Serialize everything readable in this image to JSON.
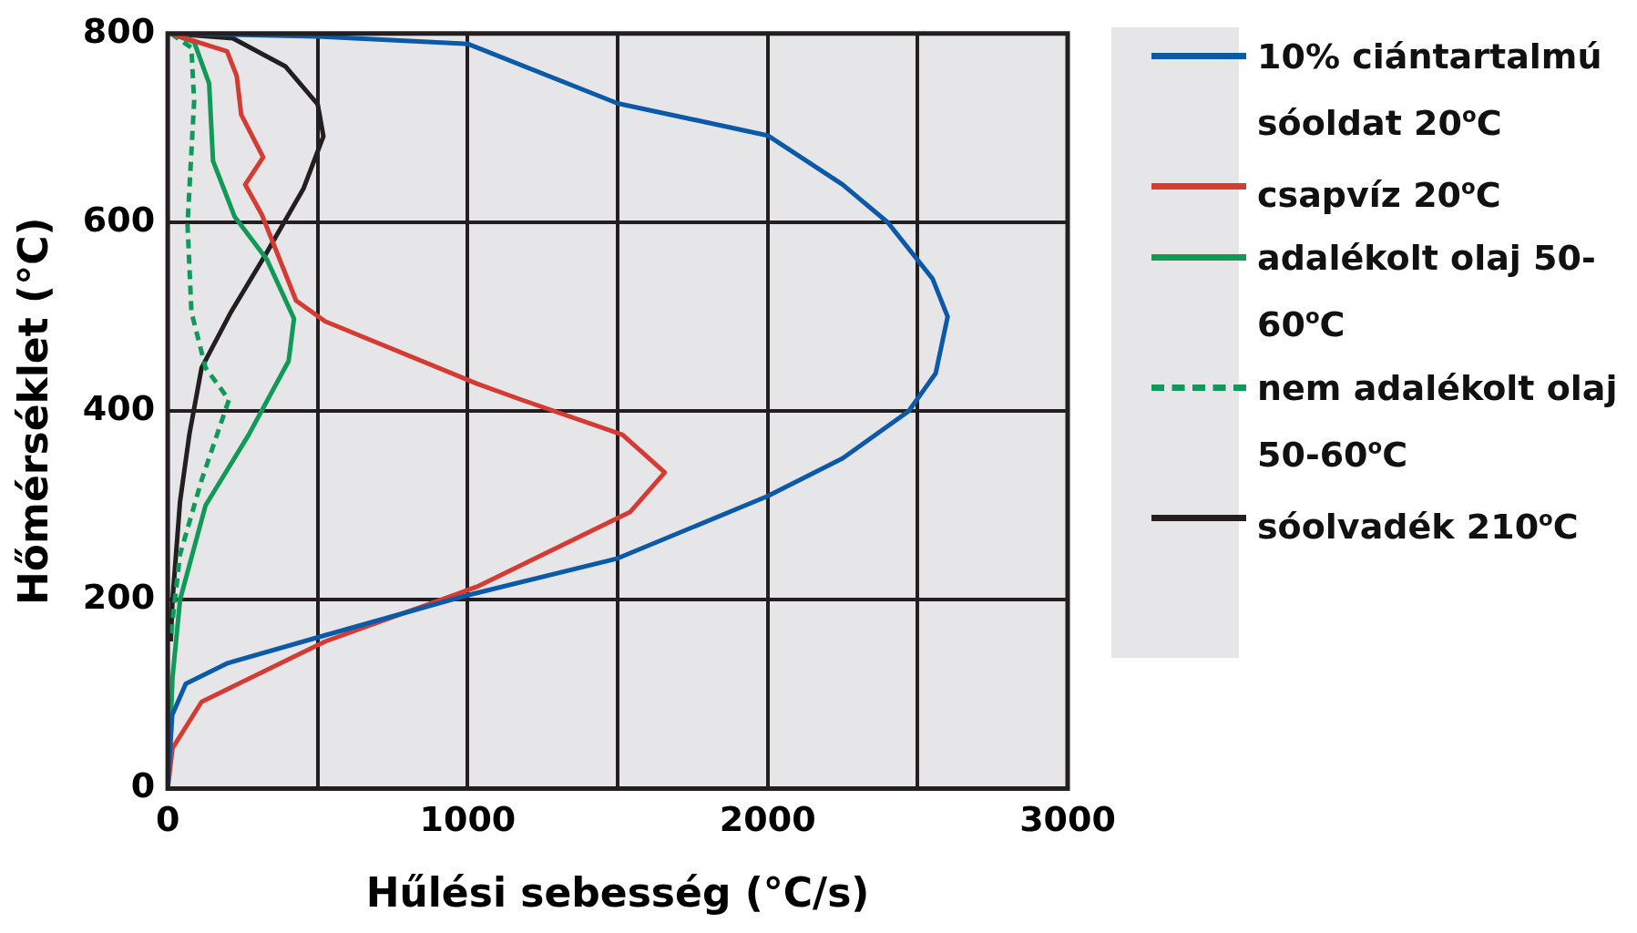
{
  "chart_data": {
    "type": "line",
    "xlabel": "Hűlési sebesség (°C/s)",
    "ylabel": "Hőmérséklet (°C)",
    "xlim": [
      0,
      3000
    ],
    "xticks": [
      0,
      {
        "value": 500,
        "label": null
      },
      1000,
      {
        "value": 1500,
        "label": null
      },
      2000,
      {
        "value": 2500,
        "label": null
      },
      3000
    ],
    "ylim": [
      0,
      800
    ],
    "yticks": [
      0,
      200,
      400,
      600,
      800
    ],
    "grid": true,
    "legend": "right",
    "marker": "none",
    "series": [
      {
        "name": "10% ciántartalmú sóoldat 20$^{o}$C",
        "color": "#0b5aa8",
        "x": [
          20,
          500,
          1000,
          1500,
          2000,
          2250,
          2400,
          2550,
          2600,
          2560,
          2470,
          2250,
          2000,
          1500,
          1000,
          530,
          200,
          60,
          15,
          0
        ],
        "values": [
          800,
          797,
          789,
          726,
          692,
          640,
          600,
          540,
          500,
          440,
          400,
          350,
          310,
          244,
          205,
          163,
          133,
          111,
          78,
          0
        ]
      },
      {
        "name": "csapvíz 20$^{o}$C",
        "color": "#d43c33",
        "x": [
          10,
          198,
          230,
          245,
          318,
          258,
          314,
          428,
          525,
          1031,
          1179,
          1516,
          1657,
          1541,
          1031,
          525,
          113,
          16,
          0
        ],
        "values": [
          800,
          781,
          755,
          714,
          669,
          640,
          608,
          517,
          495,
          429,
          412,
          375,
          335,
          293,
          214,
          156,
          92,
          43,
          0
        ]
      },
      {
        "name": "adalékolt olaj 50-60$^{o}$C",
        "color": "#119a57",
        "x": [
          10,
          88,
          138,
          151,
          223,
          330,
          421,
          403,
          270,
          126,
          41,
          16,
          0
        ],
        "values": [
          800,
          791,
          747,
          665,
          606,
          561,
          498,
          453,
          375,
          300,
          200,
          118,
          0
        ]
      },
      {
        "name": "nem adalékolt olaj 50-60$^{o}$C",
        "color": "#119a57",
        "line_style": "dashed",
        "x": [
          10,
          79,
          88,
          66,
          79,
          126,
          204,
          113,
          41,
          16,
          10
        ],
        "values": [
          800,
          785,
          728,
          598,
          505,
          446,
          412,
          327,
          248,
          178,
          160
        ]
      },
      {
        "name": "sóolvadék 210$^{o}$C",
        "color": "#231f20",
        "x": [
          10,
          217,
          393,
          500,
          519,
          453,
          330,
          211,
          113,
          72,
          41,
          16,
          10
        ],
        "values": [
          800,
          795,
          765,
          725,
          691,
          636,
          568,
          505,
          446,
          375,
          304,
          200,
          156
        ]
      }
    ]
  }
}
